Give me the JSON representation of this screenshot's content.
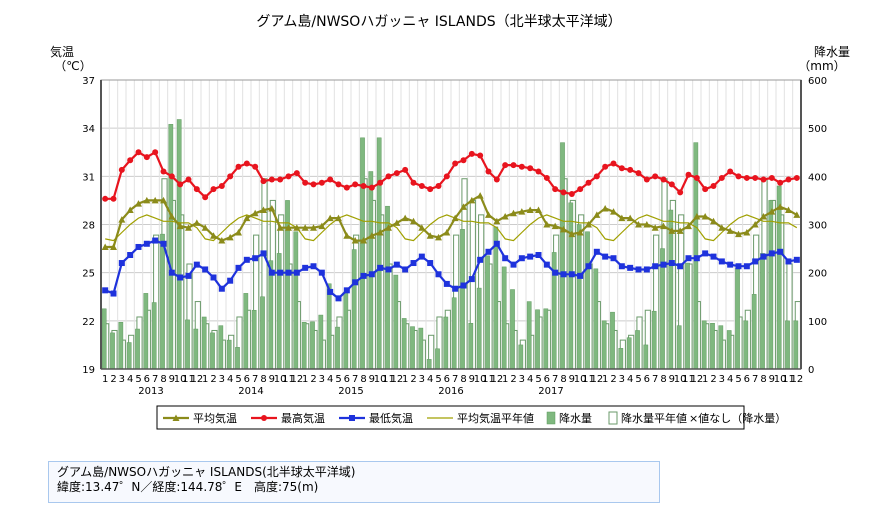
{
  "chart_data": {
    "type": "bar+line",
    "title": "グアム島/NWSOハガッニャ ISLANDS（北半球太平洋域）",
    "ylabel_left": "気温\n（℃）",
    "ylabel_right": "降水量\n（mm）",
    "y_left_range": [
      19,
      37
    ],
    "y_left_ticks": [
      "19",
      "22",
      "25",
      "28",
      "31",
      "34",
      "37"
    ],
    "y_right_range": [
      0,
      600
    ],
    "y_right_ticks": [
      "0",
      "100",
      "200",
      "300",
      "400",
      "500",
      "600"
    ],
    "grid": true,
    "legend_position": "bottom",
    "years": [
      "2013",
      "2014",
      "2015",
      "2016",
      "2017"
    ],
    "months": [
      "1",
      "2",
      "3",
      "4",
      "5",
      "6",
      "7",
      "8",
      "9",
      "10",
      "11",
      "12"
    ],
    "series": [
      {
        "name": "平均気温",
        "color": "#8b8b1a",
        "values": [
          26.6,
          26.6,
          28.3,
          28.9,
          29.3,
          29.5,
          29.5,
          29.5,
          28.5,
          27.9,
          27.8,
          28.1,
          27.8,
          27.3,
          27.0,
          27.2,
          27.5,
          28.4,
          28.7,
          28.9,
          29.0,
          27.8,
          27.8,
          27.8,
          27.8,
          27.8,
          27.9,
          28.4,
          28.4,
          27.3,
          27.0,
          27.0,
          27.3,
          27.5,
          27.8,
          28.1,
          28.4,
          28.2,
          27.8,
          27.3,
          27.2,
          27.5,
          28.4,
          29.1,
          29.5,
          29.8,
          28.6,
          28.2,
          28.5,
          28.7,
          28.8,
          28.9,
          28.9,
          28.0,
          27.9,
          27.7,
          27.4,
          27.5,
          28.0,
          28.6,
          29.0,
          28.8,
          28.4,
          28.4,
          28.0,
          28.0,
          27.8,
          27.9,
          27.6,
          27.6,
          27.9,
          28.5,
          28.5,
          28.2,
          27.8,
          27.6,
          27.4,
          27.5,
          28.0,
          28.5,
          28.8,
          29.1,
          28.9,
          28.6
        ]
      },
      {
        "name": "最高気温",
        "color": "#e8141e",
        "values": [
          29.6,
          29.6,
          31.4,
          32.0,
          32.5,
          32.2,
          32.5,
          31.3,
          31.0,
          30.5,
          30.8,
          30.2,
          29.7,
          30.2,
          30.4,
          31.0,
          31.6,
          31.8,
          31.6,
          30.7,
          30.8,
          30.8,
          31.0,
          31.2,
          30.6,
          30.5,
          30.6,
          30.8,
          30.5,
          30.3,
          30.5,
          30.4,
          30.3,
          30.6,
          31.0,
          31.2,
          31.4,
          30.6,
          30.4,
          30.2,
          30.4,
          31.0,
          31.8,
          32.0,
          32.4,
          32.3,
          31.3,
          30.8,
          31.7,
          31.7,
          31.6,
          31.5,
          31.3,
          30.9,
          30.2,
          30.0,
          29.9,
          30.2,
          30.6,
          31.0,
          31.6,
          31.8,
          31.5,
          31.4,
          31.2,
          30.8,
          31.0,
          30.8,
          30.5,
          30.0,
          31.1,
          30.9,
          30.2,
          30.4,
          30.9,
          31.3,
          31.0,
          30.9,
          30.9,
          30.8,
          30.9,
          30.6,
          30.8,
          30.9
        ]
      },
      {
        "name": "最低気温",
        "color": "#1e32dc",
        "values": [
          23.9,
          23.7,
          25.6,
          26.1,
          26.6,
          26.8,
          27.0,
          26.8,
          25.0,
          24.7,
          24.8,
          25.5,
          25.2,
          24.7,
          24.0,
          24.5,
          25.3,
          25.8,
          25.9,
          26.2,
          25.0,
          25.0,
          25.0,
          25.0,
          25.3,
          25.4,
          25.0,
          23.8,
          23.4,
          23.9,
          24.4,
          24.8,
          24.9,
          25.3,
          25.2,
          25.5,
          25.2,
          25.6,
          26.0,
          25.6,
          24.9,
          24.3,
          24.0,
          24.2,
          24.6,
          25.8,
          26.3,
          26.8,
          25.9,
          25.5,
          25.9,
          26.0,
          26.1,
          25.5,
          25.0,
          24.9,
          24.9,
          24.8,
          25.4,
          26.3,
          26.0,
          25.9,
          25.4,
          25.3,
          25.2,
          25.2,
          25.4,
          25.5,
          25.6,
          25.4,
          25.9,
          25.9,
          26.2,
          26.0,
          25.7,
          25.5,
          25.4,
          25.4,
          25.7,
          26.0,
          26.2,
          26.3,
          25.7,
          25.8
        ]
      },
      {
        "name": "平均気温平年値",
        "color": "#a0a000",
        "values": [
          27.1,
          27.0,
          27.5,
          28.0,
          28.4,
          28.6,
          28.4,
          28.2,
          28.2,
          28.1,
          28.1,
          27.8
        ]
      },
      {
        "name": "降水量",
        "color": "#7fb87f",
        "values": [
          125,
          75,
          97,
          55,
          83,
          157,
          138,
          280,
          508,
          518,
          102,
          83,
          108,
          75,
          90,
          60,
          45,
          157,
          122,
          150,
          225,
          240,
          350,
          285,
          97,
          98,
          112,
          177,
          87,
          160,
          248,
          480,
          410,
          480,
          338,
          195,
          105,
          88,
          85,
          20,
          42,
          108,
          148,
          290,
          95,
          168,
          235,
          295,
          212,
          165,
          50,
          140,
          123,
          125,
          242,
          470,
          345,
          300,
          285,
          208,
          100,
          118,
          43,
          65,
          80,
          50,
          120,
          250,
          330,
          90,
          220,
          470,
          100,
          95,
          90,
          80,
          210,
          100,
          155,
          240,
          350,
          380,
          100,
          100
        ]
      },
      {
        "name": "降水量平年値",
        "color": "#ffffff",
        "values": [
          94,
          80,
          60,
          70,
          108,
          122,
          278,
          395,
          350,
          320,
          218,
          140
        ]
      }
    ],
    "legend": [
      "平均気温",
      "最高気温",
      "最低気温",
      "平均気温平年値",
      "降水量",
      "降水量平年値",
      "×値なし（降水量）"
    ]
  },
  "station_info": {
    "name": "グアム島/NWSOハガッニャ ISLANDS(北半球太平洋域)",
    "coords": "緯度:13.47゜N／経度:144.78゜E　高度:75(m)"
  }
}
